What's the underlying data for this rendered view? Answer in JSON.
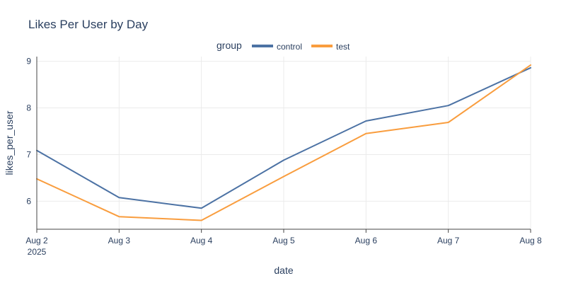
{
  "chart_data": {
    "type": "line",
    "title": "Likes Per User by Day",
    "xlabel": "date",
    "ylabel": "likes_per_user",
    "legend_title": "group",
    "legend_position": "top-center",
    "grid": true,
    "x": [
      "Aug 2",
      "Aug 3",
      "Aug 4",
      "Aug 5",
      "Aug 6",
      "Aug 7",
      "Aug 8"
    ],
    "x_year_label": "2025",
    "ylim": [
      5.4,
      9.1
    ],
    "yticks": [
      6,
      7,
      8,
      9
    ],
    "series": [
      {
        "name": "control",
        "color": "#4c72a4",
        "values": [
          7.09,
          6.08,
          5.85,
          6.88,
          7.72,
          8.05,
          8.86
        ]
      },
      {
        "name": "test",
        "color": "#f99d3e",
        "values": [
          6.48,
          5.67,
          5.59,
          6.53,
          7.45,
          7.69,
          8.92
        ]
      }
    ]
  }
}
